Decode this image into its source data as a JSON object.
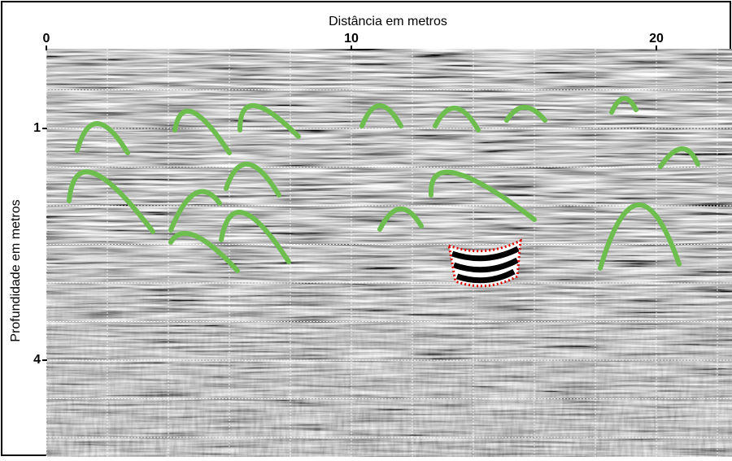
{
  "chart_data": {
    "type": "radargram",
    "xlabel": "Distância em metros",
    "ylabel": "Profundidade em metros",
    "xlim": [
      0,
      22.5
    ],
    "xticks": [
      0,
      10,
      20
    ],
    "ylim": [
      0,
      5.25
    ],
    "yticks": [
      1,
      4
    ],
    "xgrid": [
      0,
      2,
      4,
      6,
      8,
      10,
      12,
      14,
      16,
      18,
      20,
      22
    ],
    "ygrid": [
      0.5,
      1,
      1.5,
      2,
      2.5,
      3,
      3.5,
      4,
      4.5,
      5
    ],
    "grid": true
  }
}
